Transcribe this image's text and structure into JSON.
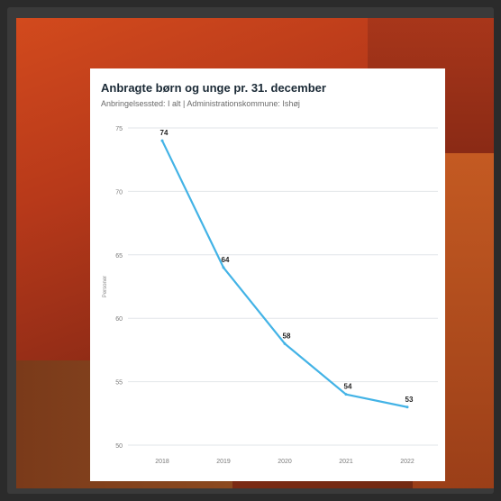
{
  "card": {
    "title": "Anbragte børn og unge pr. 31. december",
    "subtitle": "Anbringelsessted: I alt | Administrationskommune: Ishøj"
  },
  "chart_data": {
    "type": "line",
    "title": "Anbragte børn og unge pr. 31. december",
    "subtitle": "Anbringelsessted: I alt | Administrationskommune: Ishøj",
    "ylabel": "Personer",
    "x": [
      "2018",
      "2019",
      "2020",
      "2021",
      "2022"
    ],
    "series": [
      {
        "values": [
          74,
          64,
          58,
          54,
          53
        ],
        "color": "#43b3e6"
      }
    ],
    "data_labels": [
      "74",
      "64",
      "58",
      "54",
      "53"
    ],
    "yticks": [
      "75",
      "70",
      "65",
      "60",
      "55",
      "50"
    ],
    "ylim": [
      50,
      75
    ],
    "grid": true
  }
}
